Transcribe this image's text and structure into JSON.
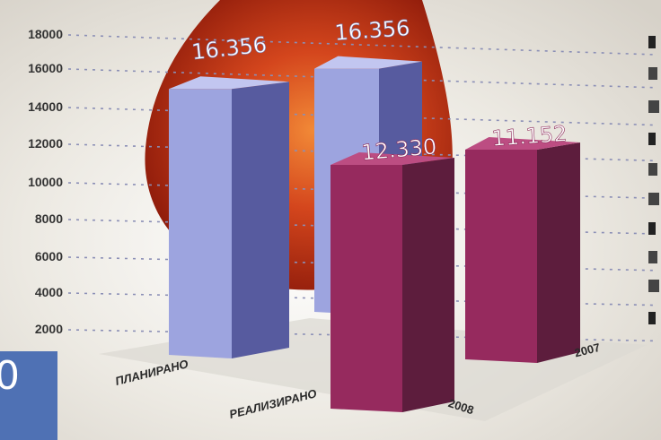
{
  "chart_data": {
    "type": "bar",
    "title": "",
    "xlabel": "",
    "ylabel": "",
    "y_ticks": [
      "18000",
      "16000",
      "14000",
      "12000",
      "10000",
      "8000",
      "6000",
      "4000",
      "2000"
    ],
    "ylim": [
      0,
      18000
    ],
    "categories": [
      "ПЛАНИРАНО",
      "РЕАЛИЗИРАНО"
    ],
    "years": [
      "2008",
      "2007"
    ],
    "series": [
      {
        "values": [
          16356,
          12330
        ],
        "labels": [
          "16.356",
          "12.330"
        ]
      },
      {
        "values": [
          16356,
          11152
        ],
        "labels": [
          "16.356",
          "11.152"
        ]
      }
    ],
    "legend": "none",
    "grid": true,
    "colors": {
      "planned_front": "#9da4df",
      "planned_side": "#575b9f",
      "planned_top": "#c2c6f0",
      "realized_front": "#962a5e",
      "realized_side": "#5d1d3d",
      "realized_top": "#bc4d82",
      "grid": "#8b8fb6",
      "background_shape": "#c53b18"
    }
  },
  "badge": {
    "text": "0",
    "color": "#4f71b4"
  }
}
